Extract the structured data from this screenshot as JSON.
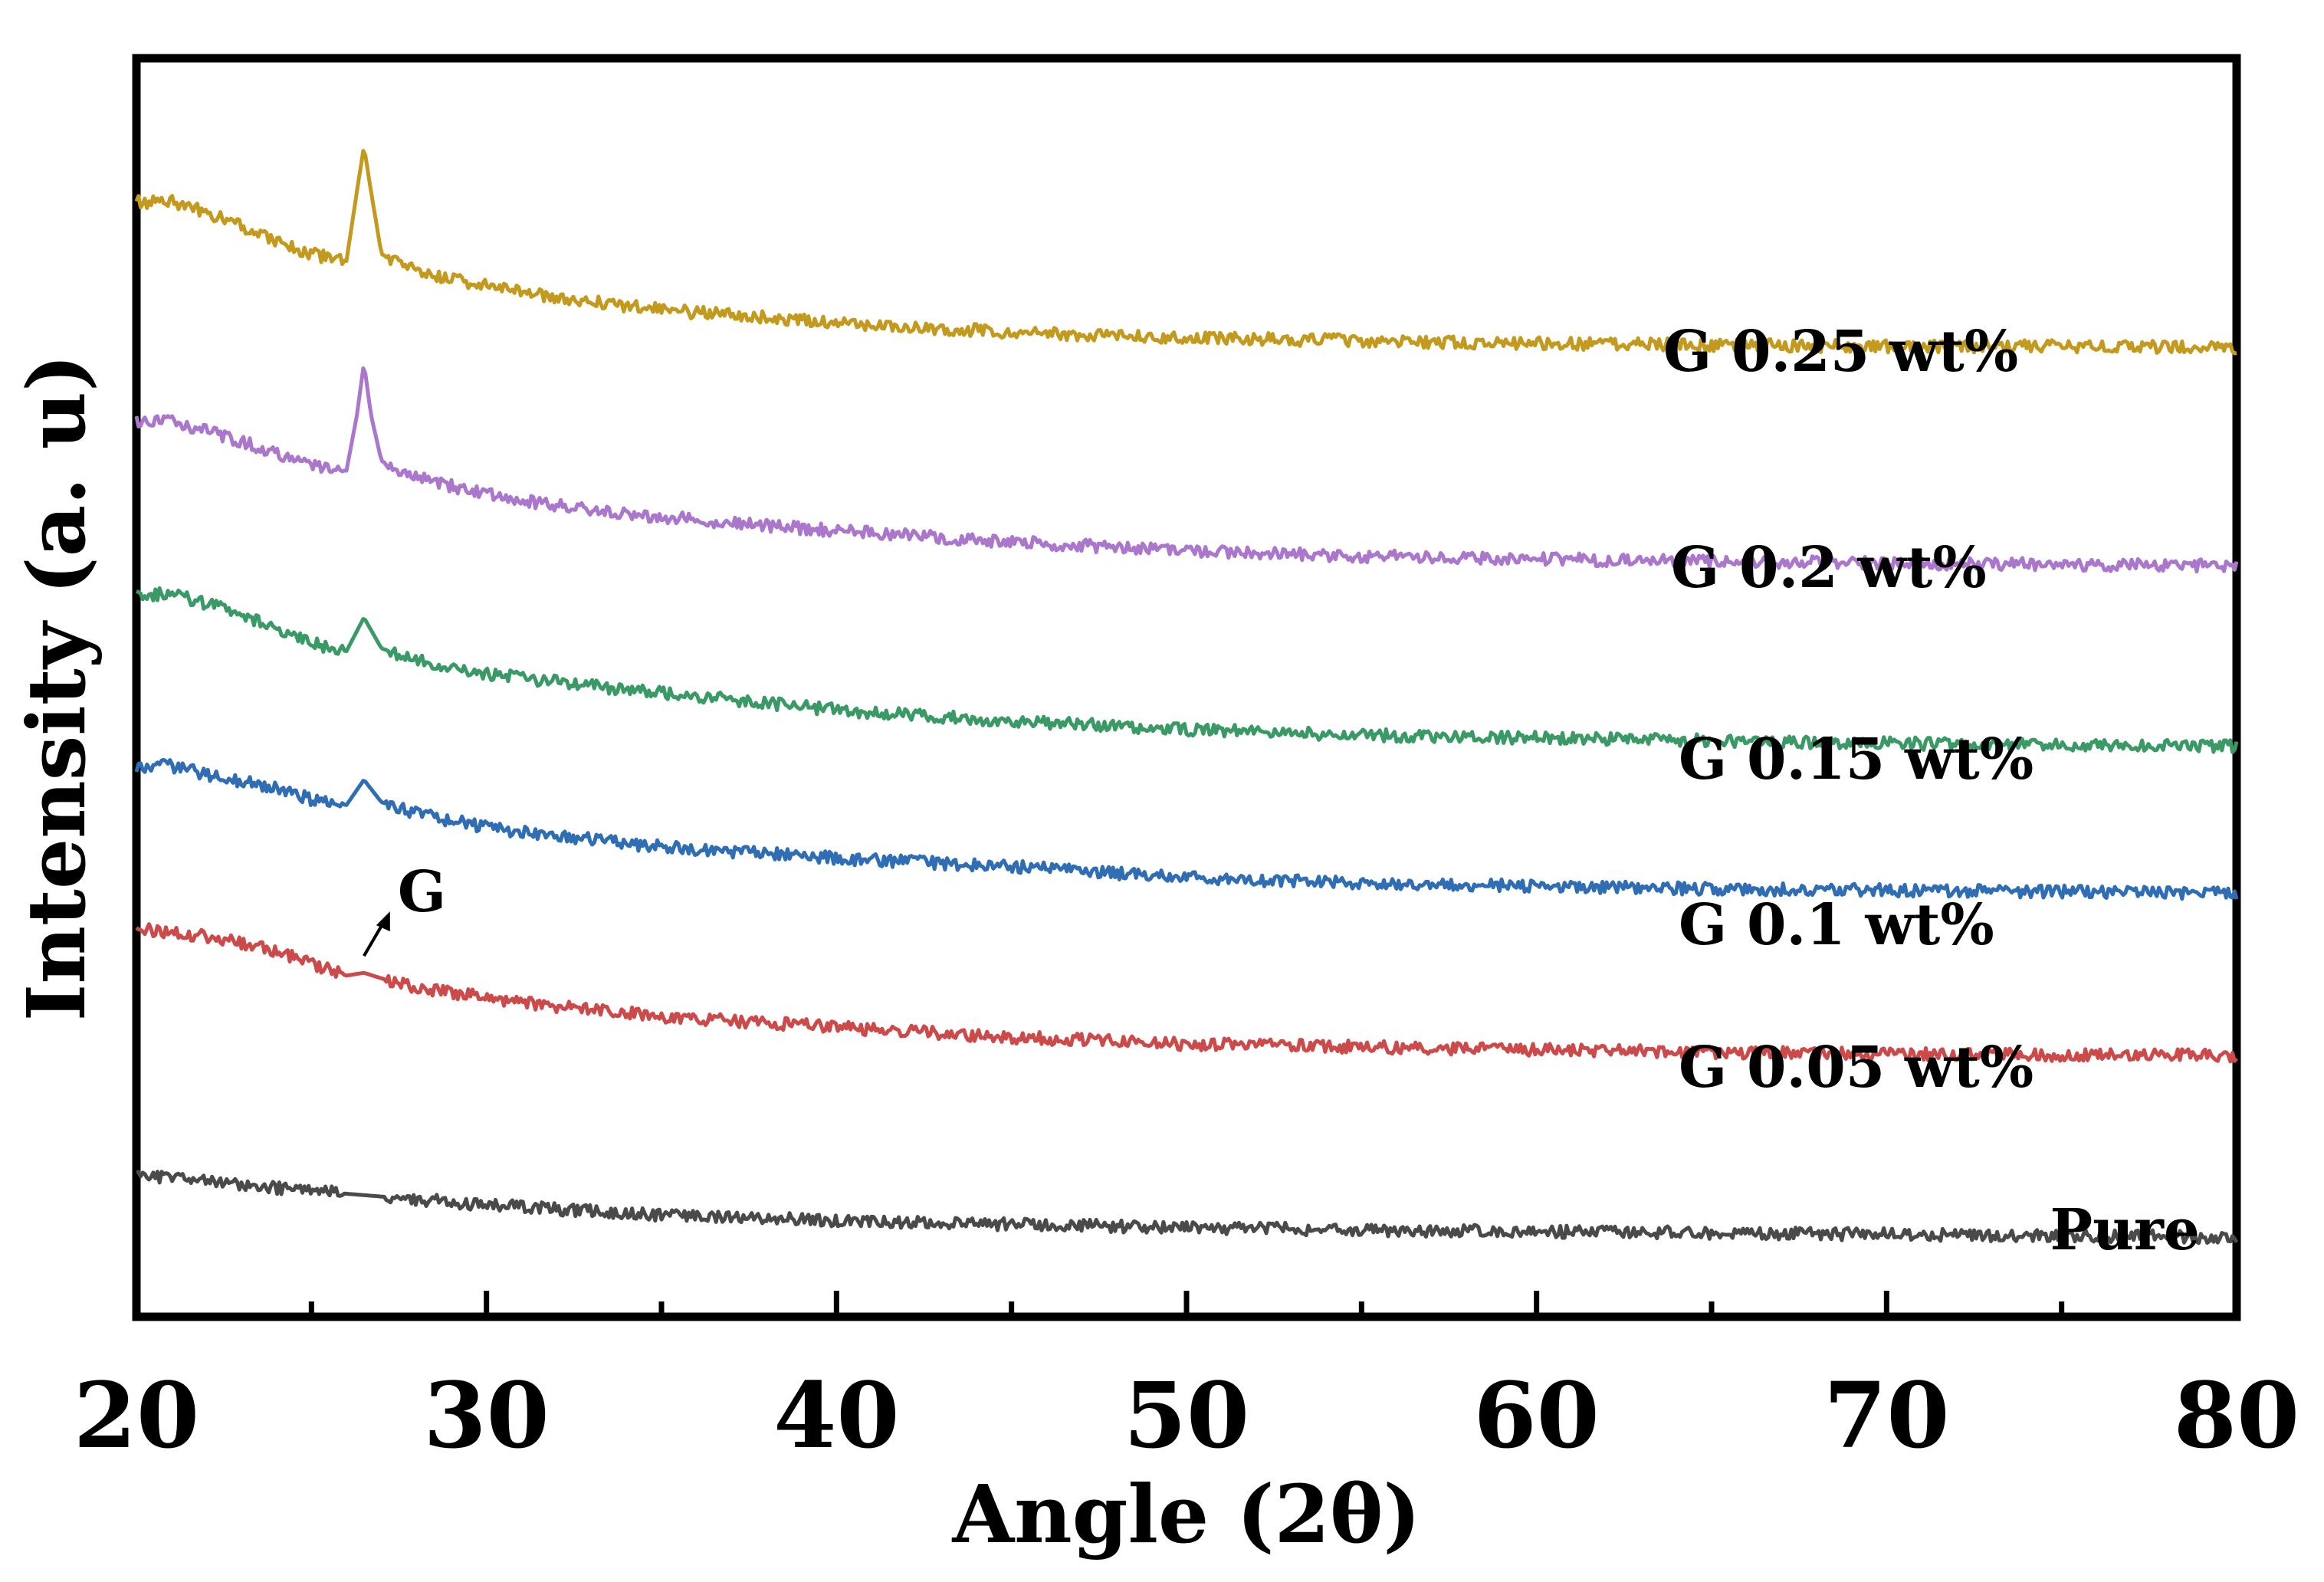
{
  "chart_data": {
    "type": "line",
    "title": "",
    "xlabel": "Angle (2θ)",
    "ylabel": "Intensity (a. u)",
    "xlim": [
      20,
      80
    ],
    "x_ticks": [
      20,
      30,
      40,
      50,
      60,
      70,
      80
    ],
    "y_ticks": [],
    "grid": false,
    "legend": "inline labels at right",
    "peak_annotation": {
      "text": "G",
      "x": 26.5
    },
    "series": [
      {
        "name": "Pure",
        "color": "#4a4a4a",
        "x": [
          20,
          22,
          24,
          26,
          28,
          30,
          32,
          35,
          40,
          45,
          50,
          55,
          60,
          65,
          70,
          75,
          80
        ],
        "y": [
          100,
          98,
          92,
          88,
          84,
          80,
          77,
          73,
          69,
          66,
          64,
          62,
          61,
          60,
          59,
          58,
          57
        ]
      },
      {
        "name": "G 0.05 wt%",
        "color": "#cc4a4a",
        "x": [
          20,
          22,
          24,
          25,
          26,
          26.5,
          27,
          28,
          30,
          32,
          35,
          40,
          45,
          50,
          55,
          60,
          65,
          70,
          75,
          80
        ],
        "y": [
          278,
          272,
          262,
          252,
          244,
          246,
          242,
          236,
          228,
          222,
          215,
          207,
          200,
          195,
          193,
          191,
          189,
          188,
          187,
          187
        ]
      },
      {
        "name": "G 0.1 wt%",
        "color": "#2f6db5",
        "x": [
          20,
          21,
          22,
          24,
          25,
          26,
          26.5,
          27,
          28,
          30,
          32,
          35,
          40,
          45,
          50,
          55,
          60,
          65,
          70,
          75,
          80
        ],
        "y": [
          393,
          394,
          388,
          378,
          370,
          366,
          384,
          368,
          360,
          350,
          344,
          336,
          328,
          322,
          314,
          310,
          308,
          306,
          305,
          304,
          303
        ]
      },
      {
        "name": "G 0.15 wt%",
        "color": "#3a9a66",
        "x": [
          20,
          21,
          22,
          23,
          24,
          25,
          26,
          26.5,
          27,
          28,
          30,
          32,
          35,
          40,
          45,
          50,
          55,
          60,
          65,
          70,
          75,
          80
        ],
        "y": [
          516,
          517,
          510,
          502,
          492,
          482,
          476,
          500,
          478,
          470,
          460,
          454,
          446,
          434,
          426,
          420,
          416,
          414,
          412,
          410,
          409,
          408
        ]
      },
      {
        "name": "G 0.2 wt%",
        "color": "#aa77cc",
        "x": [
          20,
          21,
          22,
          23,
          24,
          25,
          26,
          26.3,
          26.5,
          26.7,
          27,
          28,
          30,
          32,
          35,
          40,
          45,
          50,
          55,
          60,
          65,
          70,
          75,
          80
        ],
        "y": [
          640,
          640,
          634,
          626,
          617,
          608,
          605,
          645,
          682,
          645,
          612,
          600,
          588,
          580,
          572,
          562,
          554,
          548,
          544,
          542,
          540,
          539,
          538,
          537
        ]
      },
      {
        "name": "G 0.25 wt%",
        "color": "#c39a1e",
        "x": [
          20,
          21,
          22,
          23,
          24,
          25,
          26,
          26.3,
          26.5,
          26.7,
          27,
          28,
          30,
          32,
          35,
          40,
          45,
          50,
          55,
          60,
          65,
          70,
          75,
          80
        ],
        "y": [
          797,
          798,
          790,
          780,
          770,
          760,
          755,
          805,
          837,
          805,
          760,
          748,
          737,
          729,
          720,
          711,
          704,
          700,
          698,
          696,
          695,
          694,
          694,
          693
        ]
      }
    ]
  }
}
